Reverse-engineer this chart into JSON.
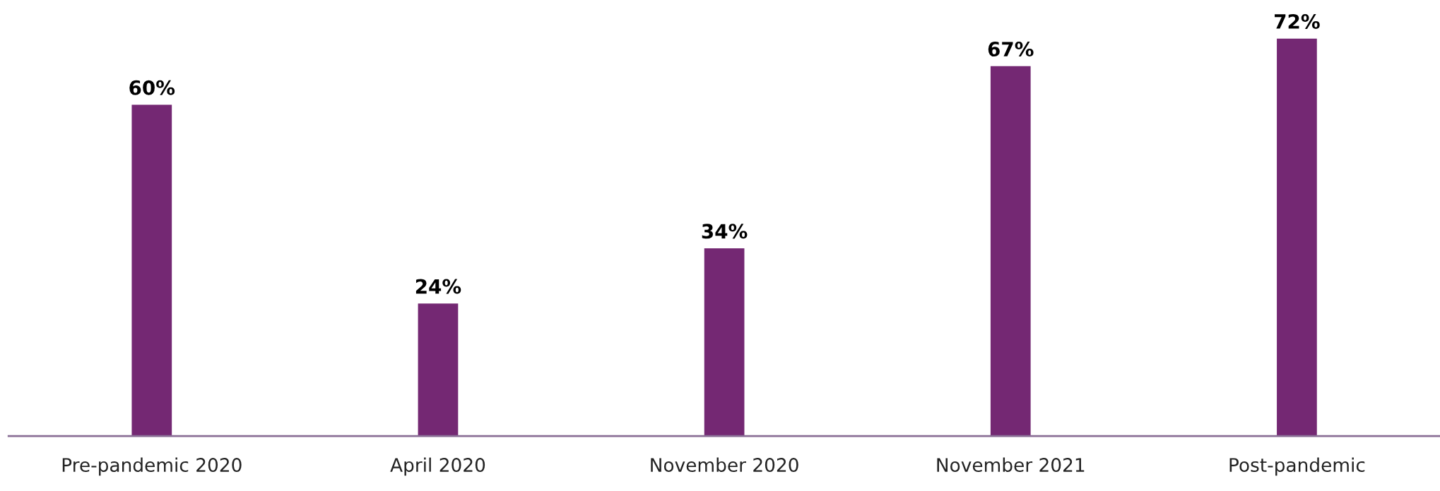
{
  "chart_data": {
    "type": "bar",
    "categories": [
      "Pre-pandemic 2020",
      "April 2020",
      "November 2020",
      "November 2021",
      "Post-pandemic"
    ],
    "values": [
      60,
      24,
      34,
      67,
      72
    ],
    "value_labels": [
      "60%",
      "24%",
      "34%",
      "67%",
      "72%"
    ],
    "color": "#742873",
    "tick_labels": "x",
    "grid": false,
    "legend": false
  }
}
